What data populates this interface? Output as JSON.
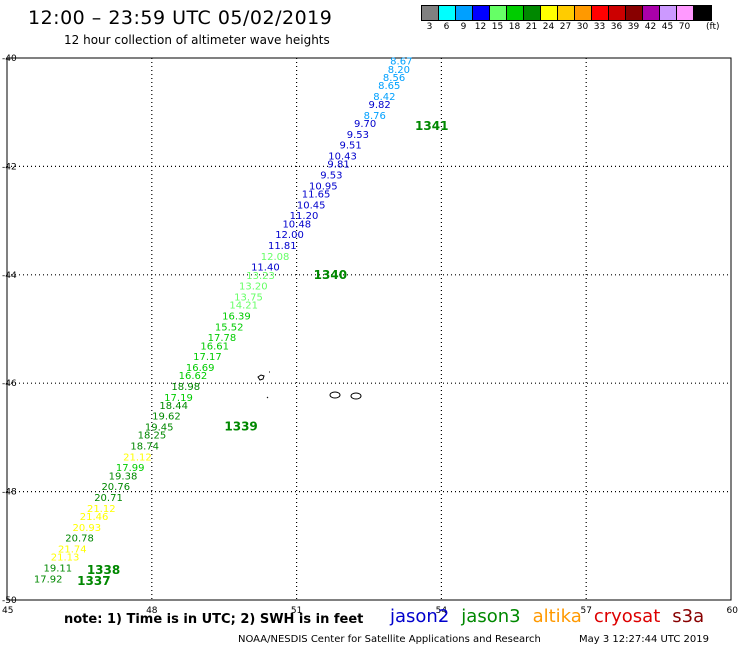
{
  "header": {
    "title": "12:00 – 23:59 UTC 05/02/2019",
    "subtitle": "12 hour collection of altimeter wave heights"
  },
  "legend": {
    "unit": "(ft)",
    "swatches": [
      {
        "label": "3",
        "color": "#808080"
      },
      {
        "label": "6",
        "color": "#00ffff"
      },
      {
        "label": "9",
        "color": "#00a0ff"
      },
      {
        "label": "12",
        "color": "#0000ff"
      },
      {
        "label": "15",
        "color": "#66ff66"
      },
      {
        "label": "18",
        "color": "#00cc00"
      },
      {
        "label": "21",
        "color": "#008800"
      },
      {
        "label": "24",
        "color": "#ffff00"
      },
      {
        "label": "27",
        "color": "#ffcc00"
      },
      {
        "label": "30",
        "color": "#ff9900"
      },
      {
        "label": "33",
        "color": "#ff0000"
      },
      {
        "label": "36",
        "color": "#cc0000"
      },
      {
        "label": "39",
        "color": "#880000"
      },
      {
        "label": "42",
        "color": "#aa00aa"
      },
      {
        "label": "45",
        "color": "#cc99ff"
      },
      {
        "label": "70",
        "color": "#ff99ff"
      },
      {
        "label": "",
        "color": "#000000"
      }
    ]
  },
  "axes": {
    "x_ticks": [
      "45",
      "48",
      "51",
      "54",
      "57",
      "60"
    ],
    "y_ticks": [
      "-40",
      "-42",
      "-44",
      "-46",
      "-48",
      "-50"
    ]
  },
  "chart_data": {
    "type": "map",
    "lon_range": [
      45,
      60
    ],
    "lat_range": [
      -50,
      -40
    ],
    "grid": "dotted",
    "track_points": [
      {
        "lon": 53.4,
        "lat": -40.05,
        "swh": "8.67",
        "color": "#00a0ff"
      },
      {
        "lon": 53.35,
        "lat": -40.2,
        "swh": "8.20",
        "color": "#00a0ff"
      },
      {
        "lon": 53.25,
        "lat": -40.35,
        "swh": "8.56",
        "color": "#00a0ff"
      },
      {
        "lon": 53.15,
        "lat": -40.5,
        "swh": "8.65",
        "color": "#00a0ff"
      },
      {
        "lon": 53.05,
        "lat": -40.7,
        "swh": "8.42",
        "color": "#00a0ff"
      },
      {
        "lon": 52.95,
        "lat": -40.85,
        "swh": "9.82",
        "color": "#0000cc"
      },
      {
        "lon": 52.85,
        "lat": -41.05,
        "swh": "8.76",
        "color": "#00a0ff"
      },
      {
        "lon": 52.65,
        "lat": -41.2,
        "swh": "9.70",
        "color": "#0000cc"
      },
      {
        "lon": 52.5,
        "lat": -41.4,
        "swh": "9.53",
        "color": "#0000cc"
      },
      {
        "lon": 52.35,
        "lat": -41.6,
        "swh": "9.51",
        "color": "#0000cc"
      },
      {
        "lon": 52.25,
        "lat": -41.8,
        "swh": "10.43",
        "color": "#0000cc"
      },
      {
        "lon": 52.1,
        "lat": -41.95,
        "swh": "9.81",
        "color": "#0000cc"
      },
      {
        "lon": 51.95,
        "lat": -42.15,
        "swh": "9.53",
        "color": "#0000cc"
      },
      {
        "lon": 51.85,
        "lat": -42.35,
        "swh": "10.95",
        "color": "#0000cc"
      },
      {
        "lon": 51.7,
        "lat": -42.5,
        "swh": "11.65",
        "color": "#0000cc"
      },
      {
        "lon": 51.6,
        "lat": -42.7,
        "swh": "10.45",
        "color": "#0000cc"
      },
      {
        "lon": 51.45,
        "lat": -42.9,
        "swh": "11.20",
        "color": "#0000cc"
      },
      {
        "lon": 51.3,
        "lat": -43.05,
        "swh": "10.48",
        "color": "#0000cc"
      },
      {
        "lon": 51.15,
        "lat": -43.25,
        "swh": "12.00",
        "color": "#0000cc"
      },
      {
        "lon": 51.0,
        "lat": -43.45,
        "swh": "11.81",
        "color": "#0000cc"
      },
      {
        "lon": 50.85,
        "lat": -43.65,
        "swh": "12.08",
        "color": "#66ff66"
      },
      {
        "lon": 50.65,
        "lat": -43.85,
        "swh": "11.40",
        "color": "#0000cc"
      },
      {
        "lon": 50.55,
        "lat": -44.0,
        "swh": "13.23",
        "color": "#66ff66"
      },
      {
        "lon": 50.4,
        "lat": -44.2,
        "swh": "13.20",
        "color": "#66ff66"
      },
      {
        "lon": 50.3,
        "lat": -44.4,
        "swh": "13.75",
        "color": "#66ff66"
      },
      {
        "lon": 50.2,
        "lat": -44.55,
        "swh": "14.21",
        "color": "#66ff66"
      },
      {
        "lon": 50.05,
        "lat": -44.75,
        "swh": "16.39",
        "color": "#00cc00"
      },
      {
        "lon": 49.9,
        "lat": -44.95,
        "swh": "15.52",
        "color": "#00cc00"
      },
      {
        "lon": 49.75,
        "lat": -45.15,
        "swh": "17.78",
        "color": "#00cc00"
      },
      {
        "lon": 49.6,
        "lat": -45.3,
        "swh": "16.61",
        "color": "#00cc00"
      },
      {
        "lon": 49.45,
        "lat": -45.5,
        "swh": "17.17",
        "color": "#00cc00"
      },
      {
        "lon": 49.3,
        "lat": -45.7,
        "swh": "16.69",
        "color": "#00cc00"
      },
      {
        "lon": 49.15,
        "lat": -45.85,
        "swh": "16.62",
        "color": "#00cc00"
      },
      {
        "lon": 49.0,
        "lat": -46.05,
        "swh": "18.98",
        "color": "#008800"
      },
      {
        "lon": 48.85,
        "lat": -46.25,
        "swh": "17.19",
        "color": "#00cc00"
      },
      {
        "lon": 48.75,
        "lat": -46.4,
        "swh": "18.44",
        "color": "#008800"
      },
      {
        "lon": 48.6,
        "lat": -46.6,
        "swh": "19.62",
        "color": "#008800"
      },
      {
        "lon": 48.45,
        "lat": -46.8,
        "swh": "19.45",
        "color": "#008800"
      },
      {
        "lon": 48.3,
        "lat": -46.95,
        "swh": "18.25",
        "color": "#008800"
      },
      {
        "lon": 48.15,
        "lat": -47.15,
        "swh": "18.74",
        "color": "#008800"
      },
      {
        "lon": 48.0,
        "lat": -47.35,
        "swh": "21.12",
        "color": "#ffff00"
      },
      {
        "lon": 47.85,
        "lat": -47.55,
        "swh": "17.99",
        "color": "#00cc00"
      },
      {
        "lon": 47.7,
        "lat": -47.7,
        "swh": "19.38",
        "color": "#008800"
      },
      {
        "lon": 47.55,
        "lat": -47.9,
        "swh": "20.76",
        "color": "#008800"
      },
      {
        "lon": 47.4,
        "lat": -48.1,
        "swh": "20.71",
        "color": "#008800"
      },
      {
        "lon": 47.25,
        "lat": -48.3,
        "swh": "21.12",
        "color": "#ffff00"
      },
      {
        "lon": 47.1,
        "lat": -48.45,
        "swh": "21.46",
        "color": "#ffff00"
      },
      {
        "lon": 46.95,
        "lat": -48.65,
        "swh": "20.93",
        "color": "#ffff00"
      },
      {
        "lon": 46.8,
        "lat": -48.85,
        "swh": "20.78",
        "color": "#008800"
      },
      {
        "lon": 46.65,
        "lat": -49.05,
        "swh": "21.74",
        "color": "#ffff00"
      },
      {
        "lon": 46.5,
        "lat": -49.2,
        "swh": "21.13",
        "color": "#ffff00"
      },
      {
        "lon": 46.35,
        "lat": -49.4,
        "swh": "19.11",
        "color": "#008800"
      },
      {
        "lon": 46.15,
        "lat": -49.6,
        "swh": "17.92",
        "color": "#008800"
      }
    ],
    "time_labels": [
      {
        "lon": 53.8,
        "lat": -41.25,
        "text": "1341",
        "color": "#008800"
      },
      {
        "lon": 51.7,
        "lat": -44.0,
        "text": "1340",
        "color": "#008800"
      },
      {
        "lon": 49.85,
        "lat": -46.8,
        "text": "1339",
        "color": "#008800"
      },
      {
        "lon": 47.0,
        "lat": -49.45,
        "text": "1338",
        "color": "#008800"
      },
      {
        "lon": 46.8,
        "lat": -49.65,
        "text": "1337",
        "color": "#008800"
      }
    ]
  },
  "footer": {
    "note": "note:  1) Time is in UTC;  2) SWH is in feet",
    "missions": [
      {
        "name": "jason2",
        "color": "#0000cc"
      },
      {
        "name": "jason3",
        "color": "#008800"
      },
      {
        "name": "altika",
        "color": "#ff9900"
      },
      {
        "name": "cryosat",
        "color": "#dd0000"
      },
      {
        "name": "s3a",
        "color": "#880000"
      }
    ],
    "credit": "NOAA/NESDIS Center for Satellite Applications and Research",
    "timestamp": "May  3 12:27:44 UTC 2019"
  }
}
